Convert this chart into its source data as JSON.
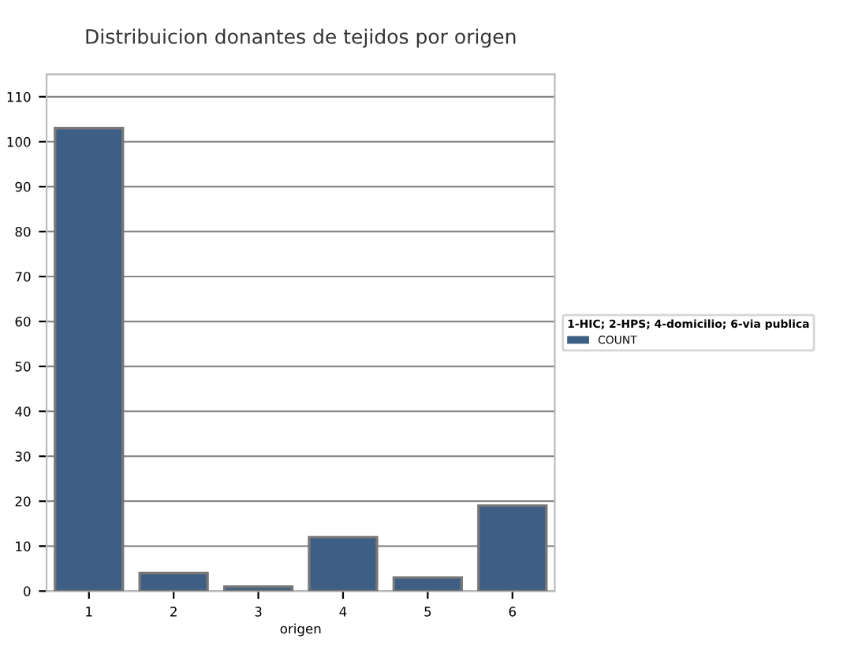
{
  "chart_data": {
    "type": "bar",
    "title": "Distribuicion donantes de tejidos por origen",
    "xlabel": "origen",
    "legend_title": "1-HIC; 2-HPS; 4-domicilio; 6-via publica",
    "categories": [
      "1",
      "2",
      "3",
      "4",
      "5",
      "6"
    ],
    "series": [
      {
        "name": "COUNT",
        "color": "#3d5f86",
        "values": [
          103,
          4,
          1,
          12,
          3,
          19
        ]
      }
    ],
    "ylim": [
      0,
      115
    ],
    "yticks": [
      0,
      10,
      20,
      30,
      40,
      50,
      60,
      70,
      80,
      90,
      100,
      110
    ],
    "grid": "y",
    "legend": "right"
  }
}
